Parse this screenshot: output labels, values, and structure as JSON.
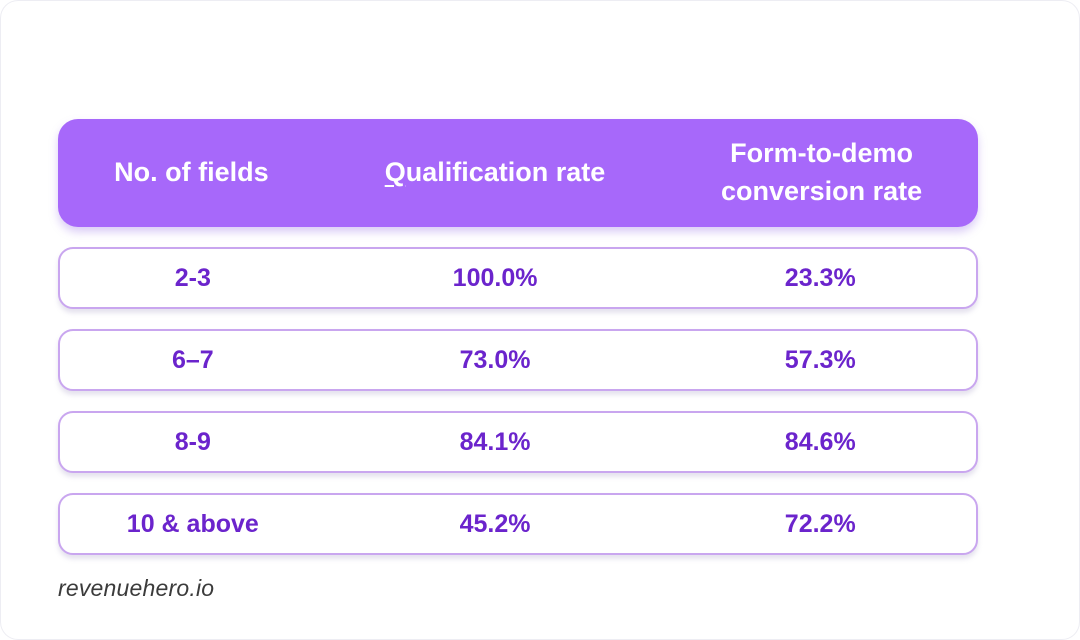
{
  "colors": {
    "header_bg": "#a768fa",
    "header_text": "#ffffff",
    "row_text": "#6b24cc",
    "row_border": "#c9a6ef",
    "card_bg": "#ffffff",
    "footer_text": "#3b3b3b"
  },
  "table": {
    "header": {
      "columns": [
        "No. of fields",
        "Qualification rate",
        "Form-to-demo conversion rate"
      ]
    },
    "rows": [
      {
        "fields": "2-3",
        "qualification_rate": "100.0%",
        "conversion_rate": "23.3%"
      },
      {
        "fields": "6–7",
        "qualification_rate": "73.0%",
        "conversion_rate": "57.3%"
      },
      {
        "fields": "8-9",
        "qualification_rate": "84.1%",
        "conversion_rate": "84.6%"
      },
      {
        "fields": "10 & above",
        "qualification_rate": "45.2%",
        "conversion_rate": "72.2%"
      }
    ]
  },
  "chart_data": {
    "type": "table",
    "title": "",
    "columns": [
      "No. of fields",
      "Qualification rate",
      "Form-to-demo conversion rate"
    ],
    "categories": [
      "2-3",
      "6–7",
      "8-9",
      "10 & above"
    ],
    "series": [
      {
        "name": "Qualification rate",
        "values": [
          100.0,
          73.0,
          84.1,
          45.2
        ],
        "unit": "%"
      },
      {
        "name": "Form-to-demo conversion rate",
        "values": [
          23.3,
          57.3,
          84.6,
          72.2
        ],
        "unit": "%"
      }
    ],
    "source": "revenuehero.io"
  },
  "footer": {
    "brand": "revenuehero.io"
  }
}
